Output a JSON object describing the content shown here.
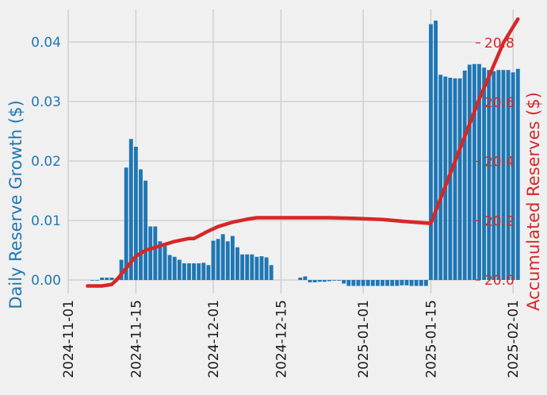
{
  "chart_data": {
    "type": "bar+line",
    "title": "",
    "xlabel": "",
    "y_left_label": "Daily Reserve Growth ($)",
    "y_right_label": "Accumulated Reserves ($)",
    "x_tick_labels": [
      "2024-11-01",
      "2024-11-15",
      "2024-12-01",
      "2024-12-15",
      "2025-01-01",
      "2025-01-15",
      "2025-02-01"
    ],
    "y_left_ticks": [
      "0.00",
      "0.01",
      "0.02",
      "0.03",
      "0.04"
    ],
    "y_right_ticks": [
      "20.0",
      "20.2",
      "20.4",
      "20.6",
      "20.8"
    ],
    "y_left_lim": [
      -0.003,
      0.046
    ],
    "y_right_lim": [
      19.96,
      20.92
    ],
    "grid": true,
    "legend": "none",
    "colors": {
      "bars": "#1f77b4",
      "line": "#d62728",
      "background": "#f0f0f0",
      "grid": "#cbcbcb"
    },
    "bar_series": {
      "name": "Daily Reserve Growth",
      "x": [
        "2024-11-06",
        "2024-11-07",
        "2024-11-08",
        "2024-11-09",
        "2024-11-10",
        "2024-11-11",
        "2024-11-12",
        "2024-11-13",
        "2024-11-14",
        "2024-11-15",
        "2024-11-16",
        "2024-11-17",
        "2024-11-18",
        "2024-11-19",
        "2024-11-20",
        "2024-11-21",
        "2024-11-22",
        "2024-11-23",
        "2024-11-24",
        "2024-11-25",
        "2024-11-26",
        "2024-11-27",
        "2024-11-28",
        "2024-11-29",
        "2024-11-30",
        "2024-12-01",
        "2024-12-02",
        "2024-12-03",
        "2024-12-04",
        "2024-12-05",
        "2024-12-06",
        "2024-12-07",
        "2024-12-08",
        "2024-12-09",
        "2024-12-10",
        "2024-12-11",
        "2024-12-12",
        "2024-12-13",
        "2024-12-19",
        "2024-12-20",
        "2024-12-21",
        "2024-12-22",
        "2024-12-23",
        "2024-12-24",
        "2024-12-25",
        "2024-12-26",
        "2024-12-27",
        "2024-12-28",
        "2024-12-29",
        "2024-12-30",
        "2024-12-31",
        "2025-01-01",
        "2025-01-02",
        "2025-01-03",
        "2025-01-04",
        "2025-01-05",
        "2025-01-06",
        "2025-01-07",
        "2025-01-08",
        "2025-01-09",
        "2025-01-10",
        "2025-01-11",
        "2025-01-12",
        "2025-01-13",
        "2025-01-14",
        "2025-01-15",
        "2025-01-16",
        "2025-01-17",
        "2025-01-18",
        "2025-01-19",
        "2025-01-20",
        "2025-01-21",
        "2025-01-22",
        "2025-01-23",
        "2025-01-24",
        "2025-01-25",
        "2025-01-26",
        "2025-01-27",
        "2025-01-28",
        "2025-01-29",
        "2025-01-30",
        "2025-01-31",
        "2025-02-01",
        "2025-02-02"
      ],
      "values": [
        0.0,
        0.0,
        0.0004,
        0.0004,
        0.0004,
        0.0003,
        0.0034,
        0.0189,
        0.0237,
        0.0224,
        0.0186,
        0.0167,
        0.009,
        0.009,
        0.0065,
        0.0057,
        0.0042,
        0.0039,
        0.0034,
        0.0028,
        0.0028,
        0.0028,
        0.0028,
        0.0029,
        0.0025,
        0.0066,
        0.0069,
        0.0077,
        0.0065,
        0.0074,
        0.0055,
        0.0043,
        0.0043,
        0.0043,
        0.0039,
        0.004,
        0.0038,
        0.0025,
        0.0004,
        0.0006,
        -0.0004,
        -0.0004,
        -0.0003,
        -0.0003,
        -0.0002,
        -0.0001,
        0.0,
        -0.0006,
        -0.001,
        -0.001,
        -0.001,
        -0.001,
        -0.001,
        -0.001,
        -0.001,
        -0.001,
        -0.001,
        -0.001,
        -0.001,
        -0.0009,
        -0.0009,
        -0.001,
        -0.001,
        -0.001,
        -0.001,
        0.043,
        0.0436,
        0.0345,
        0.0342,
        0.034,
        0.0339,
        0.0339,
        0.0352,
        0.0362,
        0.0363,
        0.0363,
        0.0357,
        0.0353,
        0.0351,
        0.0353,
        0.0353,
        0.0353,
        0.0349,
        0.0355
      ]
    },
    "line_series": {
      "name": "Accumulated Reserves",
      "points": [
        [
          "2024-11-05",
          19.98
        ],
        [
          "2024-11-08",
          19.98
        ],
        [
          "2024-11-10",
          19.985
        ],
        [
          "2024-11-11",
          20.0
        ],
        [
          "2024-11-13",
          20.04
        ],
        [
          "2024-11-15",
          20.08
        ],
        [
          "2024-11-17",
          20.1
        ],
        [
          "2024-11-20",
          20.115
        ],
        [
          "2024-11-23",
          20.13
        ],
        [
          "2024-11-26",
          20.14
        ],
        [
          "2024-11-27",
          20.14
        ],
        [
          "2024-11-30",
          20.165
        ],
        [
          "2024-12-02",
          20.18
        ],
        [
          "2024-12-05",
          20.195
        ],
        [
          "2024-12-08",
          20.205
        ],
        [
          "2024-12-10",
          20.21
        ],
        [
          "2024-12-15",
          20.21
        ],
        [
          "2024-12-20",
          20.21
        ],
        [
          "2024-12-25",
          20.21
        ],
        [
          "2024-12-30",
          20.208
        ],
        [
          "2025-01-05",
          20.204
        ],
        [
          "2025-01-10",
          20.197
        ],
        [
          "2025-01-14",
          20.192
        ],
        [
          "2025-01-15",
          20.191
        ],
        [
          "2025-01-20",
          20.4
        ],
        [
          "2025-01-25",
          20.61
        ],
        [
          "2025-01-30",
          20.8
        ],
        [
          "2025-02-02",
          20.88
        ]
      ]
    }
  }
}
